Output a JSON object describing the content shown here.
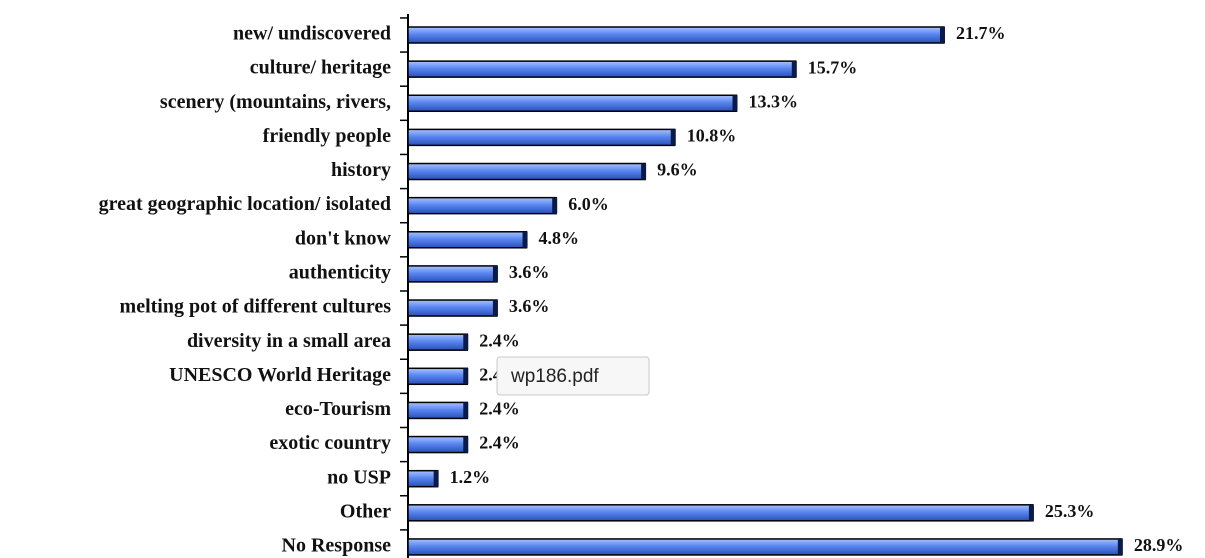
{
  "chart_data": {
    "type": "barh",
    "categories": [
      "new/ undiscovered",
      "culture/ heritage",
      "scenery (mountains, rivers,",
      "friendly people",
      "history",
      "great geographic location/ isolated",
      "don't know",
      "authenticity",
      "melting pot of different cultures",
      "diversity in a small area",
      "UNESCO World Heritage",
      "eco-Tourism",
      "exotic country",
      "no USP",
      "Other",
      "No Response"
    ],
    "values": [
      21.7,
      15.7,
      13.3,
      10.8,
      9.6,
      6.0,
      4.8,
      3.6,
      3.6,
      2.4,
      2.4,
      2.4,
      2.4,
      1.2,
      25.3,
      28.9
    ],
    "value_labels": [
      "21.7%",
      "15.7%",
      "13.3%",
      "10.8%",
      "9.6%",
      "6.0%",
      "4.8%",
      "3.6%",
      "3.6%",
      "2.4%",
      "2.4%",
      "2.4%",
      "2.4%",
      "1.2%",
      "25.3%",
      "28.9%"
    ],
    "color": "#5a86f0",
    "xlim": [
      0,
      30
    ]
  },
  "tooltip": "wp186.pdf"
}
